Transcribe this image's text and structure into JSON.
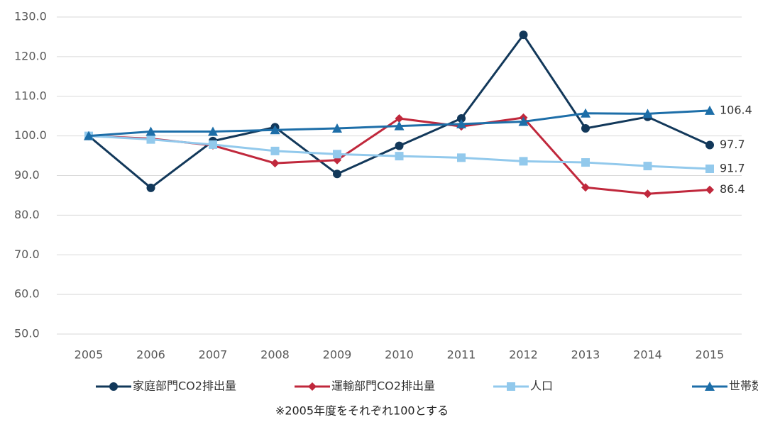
{
  "chart_data": {
    "type": "line",
    "categories": [
      "2005",
      "2006",
      "2007",
      "2008",
      "2009",
      "2010",
      "2011",
      "2012",
      "2013",
      "2014",
      "2015"
    ],
    "series": [
      {
        "name": "家庭部門CO2排出量",
        "color": "#12385a",
        "marker": "circle",
        "values": [
          100,
          86.9,
          98.7,
          102.2,
          90.4,
          97.5,
          104.4,
          125.5,
          101.9,
          104.8,
          97.7
        ]
      },
      {
        "name": "運輸部門CO2排出量",
        "color": "#c0283c",
        "marker": "diamond",
        "values": [
          100,
          99.3,
          97.6,
          93.1,
          93.9,
          104.4,
          102.4,
          104.6,
          87.0,
          85.4,
          86.4
        ]
      },
      {
        "name": "人口",
        "color": "#92c9ec",
        "marker": "square",
        "values": [
          100,
          99.1,
          97.8,
          96.2,
          95.4,
          94.9,
          94.5,
          93.6,
          93.3,
          92.4,
          91.7
        ]
      },
      {
        "name": "世帯数",
        "color": "#1d6ea8",
        "marker": "triangle",
        "values": [
          100,
          101.1,
          101.1,
          101.5,
          101.9,
          102.5,
          103.0,
          103.6,
          105.7,
          105.6,
          106.4
        ]
      }
    ],
    "last_value_labels": true,
    "ylim": [
      50,
      130
    ],
    "yticks": [
      {
        "value": 50,
        "label": "50.0"
      },
      {
        "value": 60,
        "label": "60.0"
      },
      {
        "value": 70,
        "label": "70.0"
      },
      {
        "value": 80,
        "label": "80.0"
      },
      {
        "value": 90,
        "label": "90.0"
      },
      {
        "value": 100,
        "label": "100.0"
      },
      {
        "value": 110,
        "label": "110.0"
      },
      {
        "value": 120,
        "label": "120.0"
      },
      {
        "value": 130,
        "label": "130.0"
      }
    ],
    "grid": true,
    "legend": "bottom",
    "note": "※2005年度をそれぞれ100とする"
  }
}
